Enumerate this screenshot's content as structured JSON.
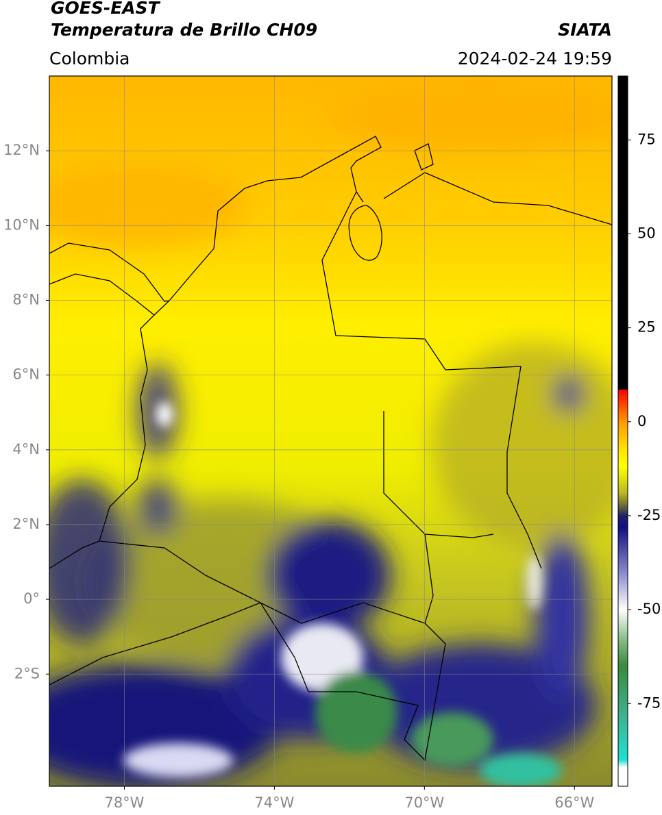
{
  "header": {
    "title": "GOES-EAST",
    "subtitle": "Temperatura de Brillo CH09",
    "source": "SIATA",
    "region": "Colombia",
    "datetime": "2024-02-24 19:59"
  },
  "map": {
    "lon_range": [
      -80,
      -65
    ],
    "lat_range": [
      -5,
      14
    ],
    "grid": true,
    "lon_ticks": [
      {
        "value": -78,
        "label": "78°W"
      },
      {
        "value": -74,
        "label": "74°W"
      },
      {
        "value": -70,
        "label": "70°W"
      },
      {
        "value": -66,
        "label": "66°W"
      }
    ],
    "lat_ticks": [
      {
        "value": 12,
        "label": "12°N"
      },
      {
        "value": 10,
        "label": "10°N"
      },
      {
        "value": 8,
        "label": "8°N"
      },
      {
        "value": 6,
        "label": "6°N"
      },
      {
        "value": 4,
        "label": "4°N"
      },
      {
        "value": 2,
        "label": "2°N"
      },
      {
        "value": 0,
        "label": "0°"
      },
      {
        "value": -2,
        "label": "2°S"
      }
    ]
  },
  "colorbar": {
    "range": [
      -97,
      92
    ],
    "ticks": [
      75,
      50,
      25,
      0,
      -25,
      -50,
      -75
    ],
    "stops": [
      [
        92,
        "#000000"
      ],
      [
        8.6,
        "#000000"
      ],
      [
        8.5,
        "#ff0000"
      ],
      [
        0,
        "#ff9900"
      ],
      [
        -8,
        "#ffe800"
      ],
      [
        -12,
        "#ffff00"
      ],
      [
        -19,
        "#b8b820"
      ],
      [
        -23,
        "#5a5a40"
      ],
      [
        -25,
        "#20206a"
      ],
      [
        -28,
        "#101080"
      ],
      [
        -40,
        "#8888cc"
      ],
      [
        -50,
        "#ffffff"
      ],
      [
        -58,
        "#88bb88"
      ],
      [
        -65,
        "#3a8a3a"
      ],
      [
        -78,
        "#40b090"
      ],
      [
        -90,
        "#20e0d0"
      ],
      [
        -92,
        "#ffffff"
      ],
      [
        -97,
        "#ffffff"
      ]
    ]
  }
}
